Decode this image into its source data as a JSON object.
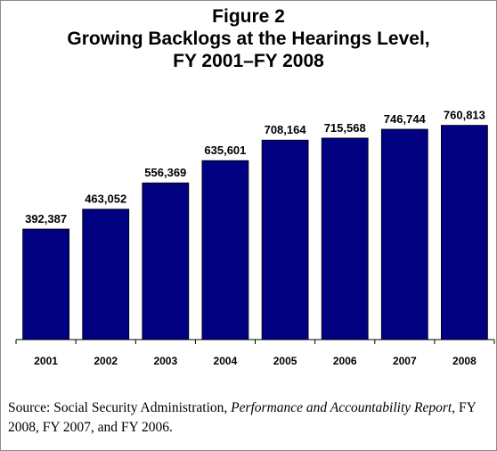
{
  "figure_label": "Figure 2",
  "chart_data": {
    "type": "bar",
    "title_lines": [
      "Growing Backlogs at the Hearings Level,",
      "FY 2001–FY 2008"
    ],
    "categories": [
      "2001",
      "2002",
      "2003",
      "2004",
      "2005",
      "2006",
      "2007",
      "2008"
    ],
    "values": [
      392387,
      463052,
      556369,
      635601,
      708164,
      715568,
      746744,
      760813
    ],
    "data_labels": [
      "392,387",
      "463,052",
      "556,369",
      "635,601",
      "708,164",
      "715,568",
      "746,744",
      "760,813"
    ],
    "ylim": [
      0,
      1000000
    ],
    "bar_color": "#000080",
    "grid": false,
    "legend": "none"
  },
  "source": {
    "prefix": "Source: Social Security Administration, ",
    "report": "Performance and Accountability Report",
    "suffix": ", FY 2008, FY 2007, and FY 2006."
  }
}
